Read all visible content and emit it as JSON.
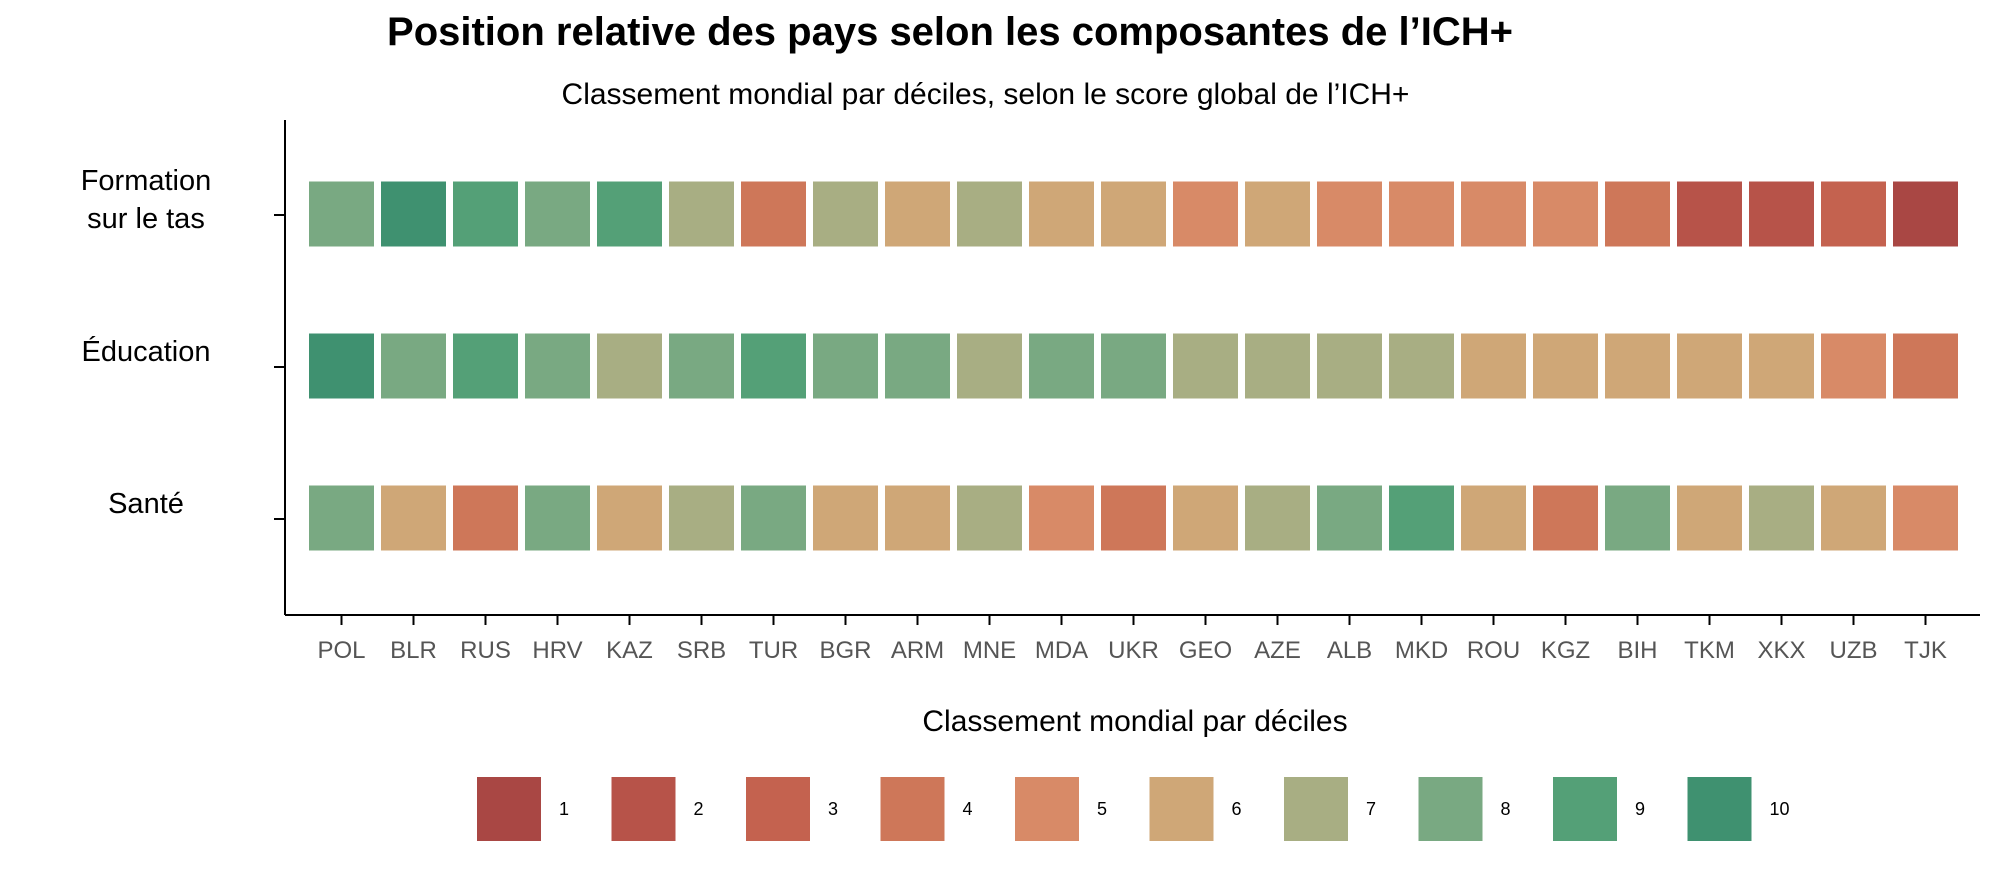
{
  "chart_data": {
    "type": "heatmap",
    "title": "Position relative des pays selon les composantes de l’ICH+",
    "subtitle": "Classement mondial par déciles, selon le score global de l’ICH+",
    "x_categories": [
      "POL",
      "BLR",
      "RUS",
      "HRV",
      "KAZ",
      "SRB",
      "TUR",
      "BGR",
      "ARM",
      "MNE",
      "MDA",
      "UKR",
      "GEO",
      "AZE",
      "ALB",
      "MKD",
      "ROU",
      "KGZ",
      "BIH",
      "TKM",
      "XKX",
      "UZB",
      "TJK"
    ],
    "rows": [
      {
        "label_lines": [
          "Formation",
          "sur le tas"
        ],
        "values": [
          8,
          10,
          9,
          8,
          9,
          7,
          4,
          7,
          6,
          7,
          6,
          6,
          5,
          6,
          5,
          5,
          5,
          5,
          4,
          2,
          2,
          3,
          1
        ]
      },
      {
        "label_lines": [
          "Éducation"
        ],
        "values": [
          10,
          8,
          9,
          8,
          7,
          8,
          9,
          8,
          8,
          7,
          8,
          8,
          7,
          7,
          7,
          7,
          6,
          6,
          6,
          6,
          6,
          5,
          4
        ]
      },
      {
        "label_lines": [
          "Santé"
        ],
        "values": [
          8,
          6,
          4,
          8,
          6,
          7,
          8,
          6,
          6,
          7,
          5,
          4,
          6,
          7,
          8,
          9,
          6,
          4,
          8,
          6,
          7,
          6,
          5
        ]
      }
    ],
    "legend": {
      "title": "Classement mondial par déciles",
      "placement": "bottom",
      "items": [
        "1",
        "2",
        "3",
        "4",
        "5",
        "6",
        "7",
        "8",
        "9",
        "10"
      ]
    },
    "colors": {
      "1": "#A94744",
      "2": "#B75349",
      "3": "#C4624F",
      "4": "#CE7759",
      "5": "#D88A67",
      "6": "#CFA777",
      "7": "#A8AE83",
      "8": "#79A982",
      "9": "#54A077",
      "10": "#3F9170"
    },
    "grid": false
  }
}
